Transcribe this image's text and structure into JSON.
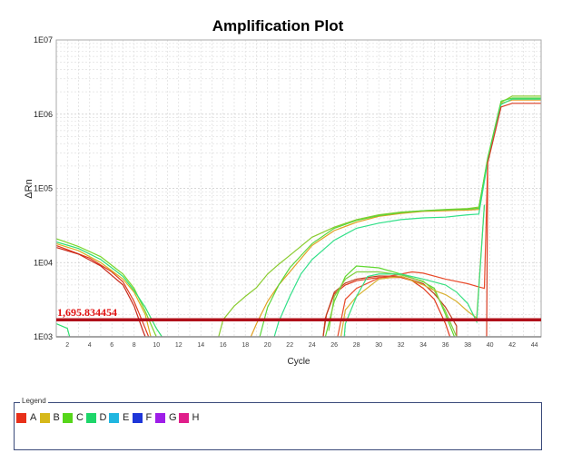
{
  "chart_data": {
    "type": "line",
    "title": "Amplification Plot",
    "xlabel": "Cycle",
    "ylabel": "ΔRn",
    "yscale": "log",
    "ylim": [
      1000,
      10000000
    ],
    "xlim": [
      1,
      44.6
    ],
    "y_ticks": [
      {
        "value": 1000,
        "label": "1E03"
      },
      {
        "value": 10000,
        "label": "1E04"
      },
      {
        "value": 100000,
        "label": "1E05"
      },
      {
        "value": 1000000,
        "label": "1E06"
      },
      {
        "value": 10000000,
        "label": "1E07"
      }
    ],
    "x_ticks": [
      2,
      4,
      6,
      8,
      10,
      12,
      14,
      16,
      18,
      20,
      22,
      24,
      26,
      28,
      30,
      32,
      34,
      36,
      38,
      40,
      42,
      44
    ],
    "grid": true,
    "threshold": {
      "value": 1695.834454,
      "label": "1,695.834454",
      "color": "#b0101a"
    },
    "series": [
      {
        "name": "A",
        "color": "#e03a1e",
        "points": [
          [
            1,
            17000
          ],
          [
            2,
            15000
          ],
          [
            4,
            11500
          ],
          [
            6,
            7500
          ],
          [
            7,
            5500
          ],
          [
            8,
            3000
          ],
          [
            9,
            1300
          ],
          [
            9.3,
            1000
          ]
        ]
      },
      {
        "name": "A",
        "color": "#c8281a",
        "points": [
          [
            1,
            16000
          ],
          [
            3,
            13000
          ],
          [
            5,
            9000
          ],
          [
            7,
            5000
          ],
          [
            8,
            2600
          ],
          [
            8.8,
            1200
          ],
          [
            9,
            1000
          ]
        ]
      },
      {
        "name": "B",
        "color": "#d8b020",
        "points": [
          [
            1,
            18000
          ],
          [
            3,
            14500
          ],
          [
            5,
            10000
          ],
          [
            7,
            6000
          ],
          [
            8,
            4000
          ],
          [
            9,
            2000
          ],
          [
            9.5,
            1000
          ]
        ]
      },
      {
        "name": "C",
        "color": "#7ad62a",
        "points": [
          [
            1,
            21000
          ],
          [
            3,
            16500
          ],
          [
            5,
            12000
          ],
          [
            7,
            7000
          ],
          [
            8,
            4500
          ],
          [
            9,
            2200
          ],
          [
            10,
            1000
          ]
        ]
      },
      {
        "name": "D",
        "color": "#2ee070",
        "points": [
          [
            1,
            19000
          ],
          [
            3,
            15500
          ],
          [
            5,
            11000
          ],
          [
            7,
            6500
          ],
          [
            8,
            4200
          ],
          [
            9,
            2500
          ],
          [
            10,
            1300
          ],
          [
            10.5,
            1000
          ]
        ]
      },
      {
        "name": "D",
        "color": "#2ee070",
        "points": [
          [
            1,
            1500
          ],
          [
            2,
            1300
          ],
          [
            2.2,
            1000
          ]
        ]
      },
      {
        "name": "C",
        "color": "#8acc30",
        "points": [
          [
            15.6,
            1000
          ],
          [
            16,
            1700
          ],
          [
            17,
            2600
          ],
          [
            18,
            3500
          ],
          [
            19,
            4600
          ],
          [
            20,
            7000
          ],
          [
            21,
            9500
          ],
          [
            22,
            12500
          ],
          [
            24,
            22000
          ],
          [
            26,
            30000
          ],
          [
            28,
            38000
          ],
          [
            30,
            44000
          ],
          [
            32,
            48000
          ],
          [
            34,
            50000
          ],
          [
            36,
            52000
          ],
          [
            38,
            53500
          ],
          [
            39,
            56000
          ],
          [
            39.8,
            250000
          ],
          [
            41,
            1450000
          ],
          [
            42,
            1750000
          ],
          [
            44.6,
            1750000
          ]
        ]
      },
      {
        "name": "B",
        "color": "#e0a020",
        "points": [
          [
            18.5,
            1000
          ],
          [
            19,
            1500
          ],
          [
            20,
            3000
          ],
          [
            21,
            5000
          ],
          [
            22,
            7500
          ],
          [
            24,
            17000
          ],
          [
            26,
            27000
          ],
          [
            28,
            35000
          ],
          [
            30,
            42000
          ],
          [
            32,
            46000
          ],
          [
            34,
            49000
          ],
          [
            36,
            50000
          ],
          [
            38,
            51000
          ],
          [
            39,
            52000
          ],
          [
            39.8,
            240000
          ],
          [
            41,
            1400000
          ],
          [
            42,
            1550000
          ],
          [
            44.6,
            1550000
          ]
        ]
      },
      {
        "name": "C",
        "color": "#5ad83a",
        "points": [
          [
            19.3,
            1000
          ],
          [
            20,
            2500
          ],
          [
            21,
            5000
          ],
          [
            22,
            8500
          ],
          [
            24,
            18000
          ],
          [
            26,
            29000
          ],
          [
            28,
            37000
          ],
          [
            30,
            43000
          ],
          [
            32,
            47000
          ],
          [
            34,
            50000
          ],
          [
            36,
            51500
          ],
          [
            38,
            52500
          ],
          [
            39,
            54000
          ],
          [
            39.8,
            260000
          ],
          [
            41,
            1500000
          ],
          [
            42,
            1650000
          ],
          [
            44.6,
            1650000
          ]
        ]
      },
      {
        "name": "D",
        "color": "#30e088",
        "points": [
          [
            20.6,
            1000
          ],
          [
            21,
            1600
          ],
          [
            22,
            3500
          ],
          [
            23,
            7000
          ],
          [
            24,
            11000
          ],
          [
            26,
            20000
          ],
          [
            28,
            29000
          ],
          [
            30,
            34000
          ],
          [
            32,
            38000
          ],
          [
            34,
            40000
          ],
          [
            36,
            41000
          ],
          [
            38,
            44000
          ],
          [
            39,
            45000
          ],
          [
            39.8,
            230000
          ],
          [
            41,
            1350000
          ],
          [
            42,
            1600000
          ],
          [
            44.6,
            1600000
          ]
        ]
      },
      {
        "name": "A",
        "color": "#d83a20",
        "points": [
          [
            39.7,
            1000
          ],
          [
            39.8,
            220000
          ],
          [
            41,
            1250000
          ],
          [
            42,
            1400000
          ],
          [
            44.6,
            1400000
          ]
        ]
      },
      {
        "name": "A",
        "color": "#e03a1e",
        "points": [
          [
            25,
            1000
          ],
          [
            25.2,
            1800
          ],
          [
            26,
            3800
          ],
          [
            27,
            5000
          ],
          [
            28,
            5700
          ],
          [
            30,
            6300
          ],
          [
            32,
            6300
          ],
          [
            33,
            5700
          ],
          [
            34,
            4500
          ],
          [
            35,
            3200
          ],
          [
            36,
            1500
          ],
          [
            36.4,
            1000
          ]
        ]
      },
      {
        "name": "A",
        "color": "#c04020",
        "points": [
          [
            25,
            1000
          ],
          [
            25.3,
            2000
          ],
          [
            26,
            4000
          ],
          [
            27,
            5300
          ],
          [
            28,
            6000
          ],
          [
            30,
            6600
          ],
          [
            32,
            6500
          ],
          [
            34,
            5200
          ],
          [
            35,
            3800
          ],
          [
            36,
            2500
          ],
          [
            37,
            1400
          ],
          [
            37,
            1000
          ]
        ]
      },
      {
        "name": "A",
        "color": "#e84a2a",
        "points": [
          [
            26.3,
            1000
          ],
          [
            27,
            3200
          ],
          [
            28,
            4500
          ],
          [
            30,
            6200
          ],
          [
            32,
            7000
          ],
          [
            33,
            7500
          ],
          [
            34,
            7200
          ],
          [
            36,
            6000
          ],
          [
            38,
            5200
          ],
          [
            39,
            4700
          ],
          [
            39.5,
            4500
          ],
          [
            39.8,
            230000
          ]
        ]
      },
      {
        "name": "C",
        "color": "#60d830",
        "points": [
          [
            25.2,
            1000
          ],
          [
            26,
            3000
          ],
          [
            27,
            6500
          ],
          [
            28,
            9000
          ],
          [
            30,
            8500
          ],
          [
            32,
            7000
          ],
          [
            34,
            5500
          ],
          [
            35,
            4500
          ],
          [
            36,
            2000
          ],
          [
            36.8,
            1000
          ]
        ]
      },
      {
        "name": "C",
        "color": "#80d040",
        "points": [
          [
            25.5,
            1200
          ],
          [
            26,
            3500
          ],
          [
            27,
            6000
          ],
          [
            28,
            7500
          ],
          [
            30,
            7500
          ],
          [
            32,
            6800
          ],
          [
            34,
            5600
          ],
          [
            35,
            4200
          ],
          [
            36,
            2200
          ],
          [
            37,
            1000
          ]
        ]
      },
      {
        "name": "B",
        "color": "#d8b030",
        "points": [
          [
            26.6,
            1000
          ],
          [
            27,
            2300
          ],
          [
            28,
            3500
          ],
          [
            30,
            6000
          ],
          [
            32,
            6500
          ],
          [
            34,
            5000
          ],
          [
            35,
            4200
          ],
          [
            36,
            3700
          ],
          [
            37,
            3000
          ],
          [
            38,
            2200
          ],
          [
            38.8,
            1800
          ],
          [
            39.5,
            60000
          ]
        ]
      },
      {
        "name": "D",
        "color": "#38e080",
        "points": [
          [
            26.9,
            1000
          ],
          [
            27,
            1500
          ],
          [
            28,
            3500
          ],
          [
            29,
            6500
          ],
          [
            30,
            7000
          ],
          [
            32,
            7000
          ],
          [
            34,
            6000
          ],
          [
            36,
            5000
          ],
          [
            37,
            4000
          ],
          [
            38,
            2800
          ],
          [
            38.8,
            1600
          ],
          [
            39.5,
            60000
          ]
        ]
      }
    ]
  },
  "legend": {
    "title": "Legend",
    "items": [
      {
        "label": "A",
        "color": "#e8301a"
      },
      {
        "label": "B",
        "color": "#d6b81a"
      },
      {
        "label": "C",
        "color": "#56d61a"
      },
      {
        "label": "D",
        "color": "#1ed66a"
      },
      {
        "label": "E",
        "color": "#20b6e0"
      },
      {
        "label": "F",
        "color": "#1e36d8"
      },
      {
        "label": "G",
        "color": "#9e1ee8"
      },
      {
        "label": "H",
        "color": "#e01e8a"
      }
    ]
  }
}
